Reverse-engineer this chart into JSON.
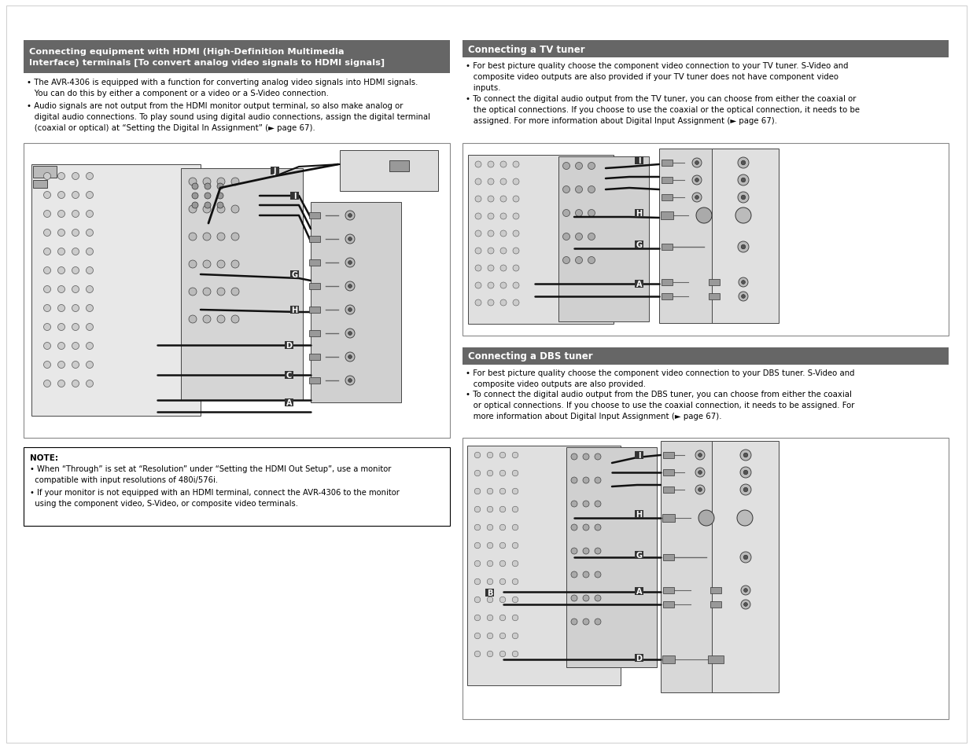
{
  "page_bg": "#ffffff",
  "header_bg": "#666666",
  "header_text_color": "#ffffff",
  "body_text_color": "#000000",
  "diagram_bg": "#f0f0f0",
  "diagram_border": "#888888",
  "avr_bg": "#d8d8d8",
  "avr_border": "#444444",
  "wire_color": "#111111",
  "connector_fill": "#888888",
  "connector_border": "#333333",
  "rca_fill": "#aaaaaa",
  "label_bg": "#333333",
  "label_text": "#ffffff",
  "left_header": "Connecting equipment with HDMI (High-Definition Multimedia\nInterface) terminals [To convert analog video signals to HDMI signals]",
  "left_text1": "• The AVR-4306 is equipped with a function for converting analog video signals into HDMI signals.\n   You can do this by either a component or a video or a S-Video connection.",
  "left_text2": "• Audio signals are not output from the HDMI monitor output terminal, so also make analog or\n   digital audio connections. To play sound using digital audio connections, assign the digital terminal\n   (coaxial or optical) at “Setting the Digital In Assignment” (► page 67).",
  "tv_header": "Connecting a TV tuner",
  "tv_text1": "• For best picture quality choose the component video connection to your TV tuner. S-Video and\n   composite video outputs are also provided if your TV tuner does not have component video\n   inputs.",
  "tv_text2": "• To connect the digital audio output from the TV tuner, you can choose from either the coaxial or\n   the optical connections. If you choose to use the coaxial or the optical connection, it needs to be\n   assigned. For more information about Digital Input Assignment (► page 67).",
  "dbs_header": "Connecting a DBS tuner",
  "dbs_text1": "• For best picture quality choose the component video connection to your DBS tuner. S-Video and\n   composite video outputs are also provided.",
  "dbs_text2": "• To connect the digital audio output from the DBS tuner, you can choose from either the coaxial\n   or optical connections. If you choose to use the coaxial connection, it needs to be assigned. For\n   more information about Digital Input Assignment (► page 67).",
  "note_title": "NOTE:",
  "note_text1": "• When “Through” is set at “Resolution” under “Setting the HDMI Out Setup”, use a monitor\n  compatible with input resolutions of 480i/576i.",
  "note_text2": "• If your monitor is not equipped with an HDMI terminal, connect the AVR-4306 to the monitor\n  using the component video, S-Video, or composite video terminals."
}
